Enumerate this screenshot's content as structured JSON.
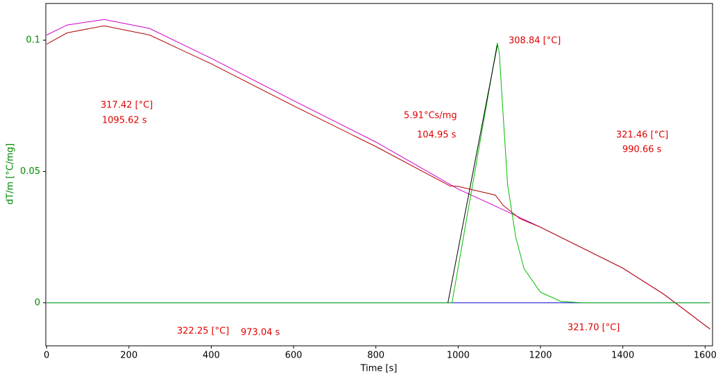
{
  "chart_data": {
    "type": "line",
    "x_label": "Time [s]",
    "y_label": "dT/m  [°C/mg]",
    "xlim": [
      -2,
      1618
    ],
    "ylim": [
      -0.0164,
      0.114
    ],
    "xticks": [
      0,
      200,
      400,
      600,
      800,
      1000,
      1200,
      1400,
      1600
    ],
    "yticks": [
      0,
      0.05,
      0.1
    ],
    "series": [
      {
        "color": "#cc00cc",
        "x": [
          0,
          50,
          140,
          250,
          400,
          600,
          800,
          1000,
          1100,
          1200,
          1400,
          1500,
          1612
        ],
        "values": [
          0.102,
          0.1058,
          0.1079,
          0.1045,
          0.0931,
          0.077,
          0.0612,
          0.0433,
          0.0361,
          0.0288,
          0.0132,
          0.0032,
          -0.01
        ]
      },
      {
        "color": "#b00000",
        "x": [
          0,
          50,
          140,
          250,
          400,
          600,
          800,
          980,
          1000,
          1090,
          1110,
          1150,
          1200,
          1400,
          1500,
          1612
        ],
        "values": [
          0.0985,
          0.1028,
          0.1055,
          0.102,
          0.091,
          0.075,
          0.0595,
          0.0445,
          0.0443,
          0.041,
          0.037,
          0.032,
          0.0288,
          0.0132,
          0.0032,
          -0.01
        ]
      },
      {
        "color": "#00bb00",
        "x": [
          0,
          985,
          1095,
          1100,
          1110,
          1120,
          1140,
          1160,
          1200,
          1250,
          1300,
          1612
        ],
        "values": [
          0,
          0,
          0.099,
          0.095,
          0.07,
          0.045,
          0.025,
          0.013,
          0.004,
          0.0005,
          0,
          0
        ]
      },
      {
        "color": "#000000",
        "x": [
          975,
          1095
        ],
        "values": [
          0,
          0.098
        ]
      },
      {
        "color": "#0000cc",
        "x": [
          0,
          1612
        ],
        "values": [
          0,
          0
        ]
      }
    ],
    "annotations": [
      "317.42 [°C]",
      "1095.62 s",
      "5.91°Cs/mg",
      "104.95 s",
      "308.84 [°C]",
      "321.46 [°C]",
      "990.66 s",
      "322.25 [°C]",
      "973.04 s",
      "321.70 [°C]"
    ]
  }
}
